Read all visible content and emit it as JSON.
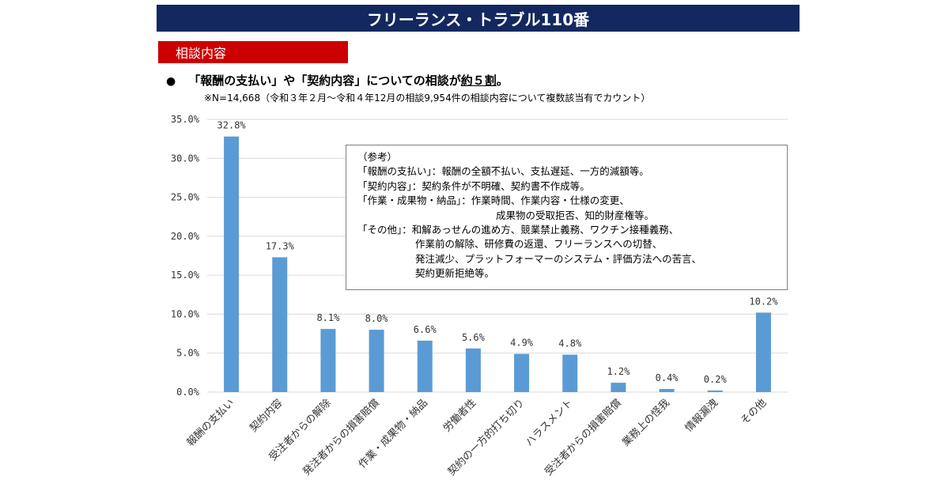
{
  "header": {
    "title": "フリーランス・トラブル110番",
    "section_label": "相談内容",
    "bullet_symbol": "●",
    "headline_prefix": "「報酬の支払い」や「契約内容」についての相談が",
    "headline_emphasis": "約５割",
    "headline_suffix": "。",
    "note": "※N=14,668（令和３年２月～令和４年12月の相談9,954件の相談内容について複数該当有でカウント）"
  },
  "reference_box": {
    "heading": "（参考）",
    "lines": [
      "「報酬の支払い」：報酬の全額不払い、支払遅延、一方的減額等。",
      "「契約内容」：契約条件が不明確、契約書不作成等。",
      "「作業・成果物・納品」：作業時間、作業内容・仕様の変更、",
      "成果物の受取拒否、知的財産権等。",
      "「その他」：和解あっせんの進め方、競業禁止義務、ワクチン接種義務、",
      "作業前の解除、研修費の返還、フリーランスへの切替、",
      "発注減少、プラットフォーマーのシステム・評価方法への苦言、",
      "契約更新拒絶等。"
    ]
  },
  "colors": {
    "title_bg": "#13285f",
    "section_bg": "#cc0000",
    "bar": "#5b9bd5",
    "grid": "#d9d9d9"
  },
  "chart_data": {
    "type": "bar",
    "categories": [
      "報酬の支払い",
      "契約内容",
      "受注者からの解除",
      "発注者からの損害賠償",
      "作業・成果物・納品",
      "労働者性",
      "契約の一方的打ち切り",
      "ハラスメント",
      "受注者からの損害賠償",
      "業務上の怪我",
      "情報漏洩",
      "その他"
    ],
    "values": [
      32.8,
      17.3,
      8.1,
      8.0,
      6.6,
      5.6,
      4.9,
      4.8,
      1.2,
      0.4,
      0.2,
      10.2
    ],
    "data_labels": [
      "32.8%",
      "17.3%",
      "8.1%",
      "8.0%",
      "6.6%",
      "5.6%",
      "4.9%",
      "4.8%",
      "1.2%",
      "0.4%",
      "0.2%",
      "10.2%"
    ],
    "ylim": [
      0,
      35
    ],
    "y_ticks": [
      0,
      5,
      10,
      15,
      20,
      25,
      30,
      35
    ],
    "y_tick_labels": [
      "0.0%",
      "5.0%",
      "10.0%",
      "15.0%",
      "20.0%",
      "25.0%",
      "30.0%",
      "35.0%"
    ],
    "grid": true,
    "title": "",
    "xlabel": "",
    "ylabel": ""
  }
}
